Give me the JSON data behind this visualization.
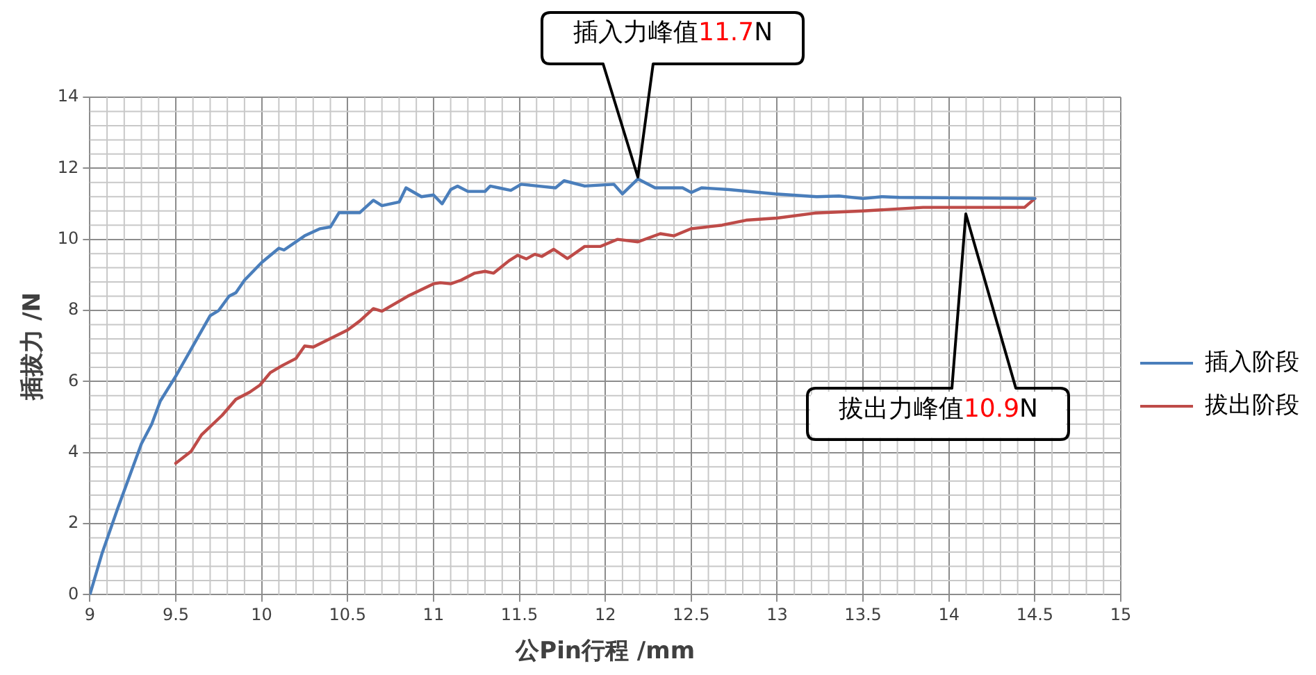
{
  "chart_data": {
    "type": "line",
    "xlabel": "公Pin行程 /mm",
    "ylabel": "插拔力 /N",
    "xlim": [
      9,
      15
    ],
    "xticks": [
      9,
      9.5,
      10,
      10.5,
      11,
      11.5,
      12,
      12.5,
      13,
      13.5,
      14,
      14.5,
      15
    ],
    "ylim": [
      0,
      14
    ],
    "yticks": [
      0,
      2,
      4,
      6,
      8,
      10,
      12,
      14
    ],
    "grid": true,
    "legend": "right",
    "marker": "none",
    "line_style": "solid",
    "series": [
      {
        "name": "插入阶段",
        "color": "#4a7ebb",
        "x": [
          9,
          9.07,
          9.16,
          9.3,
          9.36,
          9.41,
          9.5,
          9.6,
          9.7,
          9.75,
          9.81,
          9.85,
          9.9,
          10,
          10.1,
          10.13,
          10.25,
          10.34,
          10.4,
          10.45,
          10.57,
          10.65,
          10.7,
          10.8,
          10.84,
          10.93,
          11,
          11.05,
          11.1,
          11.14,
          11.2,
          11.3,
          11.33,
          11.38,
          11.45,
          11.51,
          11.71,
          11.76,
          11.88,
          12.05,
          12.1,
          12.19,
          12.29,
          12.45,
          12.5,
          12.56,
          12.72,
          12.99,
          13.23,
          13.36,
          13.5,
          13.61,
          13.71,
          14.5
        ],
        "values": [
          0,
          1.15,
          2.4,
          4.25,
          4.8,
          5.45,
          6.15,
          7,
          7.85,
          8,
          8.4,
          8.5,
          8.85,
          9.35,
          9.75,
          9.7,
          10.1,
          10.3,
          10.35,
          10.75,
          10.75,
          11.1,
          10.95,
          11.05,
          11.45,
          11.2,
          11.25,
          11,
          11.4,
          11.5,
          11.35,
          11.35,
          11.5,
          11.45,
          11.38,
          11.55,
          11.45,
          11.65,
          11.5,
          11.55,
          11.28,
          11.7,
          11.45,
          11.45,
          11.32,
          11.45,
          11.4,
          11.28,
          11.2,
          11.22,
          11.15,
          11.2,
          11.18,
          11.15
        ]
      },
      {
        "name": "拔出阶段",
        "color": "#be4b48",
        "x": [
          9.5,
          9.59,
          9.65,
          9.77,
          9.85,
          9.93,
          9.99,
          10.05,
          10.12,
          10.2,
          10.25,
          10.3,
          10.5,
          10.57,
          10.65,
          10.7,
          10.85,
          11,
          11.04,
          11.1,
          11.16,
          11.24,
          11.3,
          11.35,
          11.44,
          11.49,
          11.54,
          11.59,
          11.63,
          11.7,
          11.78,
          11.88,
          11.97,
          12.07,
          12.19,
          12.32,
          12.4,
          12.5,
          12.68,
          12.82,
          13,
          13.22,
          13.5,
          13.85,
          14.44,
          14.5
        ],
        "values": [
          3.7,
          4.04,
          4.5,
          5.05,
          5.5,
          5.7,
          5.9,
          6.25,
          6.45,
          6.65,
          7,
          6.97,
          7.45,
          7.7,
          8.05,
          7.98,
          8.4,
          8.75,
          8.78,
          8.75,
          8.85,
          9.05,
          9.1,
          9.05,
          9.4,
          9.55,
          9.45,
          9.58,
          9.52,
          9.72,
          9.46,
          9.8,
          9.8,
          10,
          9.93,
          10.16,
          10.1,
          10.3,
          10.4,
          10.54,
          10.6,
          10.74,
          10.8,
          10.9,
          10.9,
          11.15
        ]
      }
    ],
    "annotations": [
      "插入力峰值11.7N",
      "拔出力峰值10.9N"
    ]
  }
}
